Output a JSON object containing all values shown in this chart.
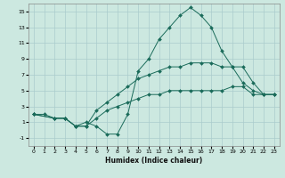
{
  "xlabel": "Humidex (Indice chaleur)",
  "bg_color": "#cce8e0",
  "grid_color": "#aacccc",
  "line_color": "#1a6b5a",
  "xlim": [
    -0.5,
    23.5
  ],
  "ylim": [
    -2,
    16
  ],
  "xticks": [
    0,
    1,
    2,
    3,
    4,
    5,
    6,
    7,
    8,
    9,
    10,
    11,
    12,
    13,
    14,
    15,
    16,
    17,
    18,
    19,
    20,
    21,
    22,
    23
  ],
  "yticks": [
    -1,
    1,
    3,
    5,
    7,
    9,
    11,
    13,
    15
  ],
  "line1_x": [
    0,
    1,
    2,
    3,
    4,
    5,
    6,
    7,
    8,
    9,
    10,
    11,
    12,
    13,
    14,
    15,
    16,
    17,
    18,
    19,
    20,
    21,
    22,
    23
  ],
  "line1_y": [
    2,
    2,
    1.5,
    1.5,
    0.5,
    1.0,
    0.5,
    -0.5,
    -0.5,
    2,
    7.5,
    9,
    11.5,
    13,
    14.5,
    15.5,
    14.5,
    13,
    10,
    8,
    6,
    5,
    4.5,
    4.5
  ],
  "line2_x": [
    0,
    2,
    3,
    4,
    5,
    6,
    7,
    8,
    9,
    10,
    11,
    12,
    13,
    14,
    15,
    16,
    17,
    18,
    19,
    20,
    21,
    22,
    23
  ],
  "line2_y": [
    2,
    1.5,
    1.5,
    0.5,
    0.5,
    2.5,
    3.5,
    4.5,
    5.5,
    6.5,
    7.0,
    7.5,
    8.0,
    8.0,
    8.5,
    8.5,
    8.5,
    8.0,
    8.0,
    8.0,
    6.0,
    4.5,
    4.5
  ],
  "line3_x": [
    0,
    2,
    3,
    4,
    5,
    6,
    7,
    8,
    9,
    10,
    11,
    12,
    13,
    14,
    15,
    16,
    17,
    18,
    19,
    20,
    21,
    22,
    23
  ],
  "line3_y": [
    2,
    1.5,
    1.5,
    0.5,
    0.5,
    1.5,
    2.5,
    3.0,
    3.5,
    4.0,
    4.5,
    4.5,
    5.0,
    5.0,
    5.0,
    5.0,
    5.0,
    5.0,
    5.5,
    5.5,
    4.5,
    4.5,
    4.5
  ]
}
